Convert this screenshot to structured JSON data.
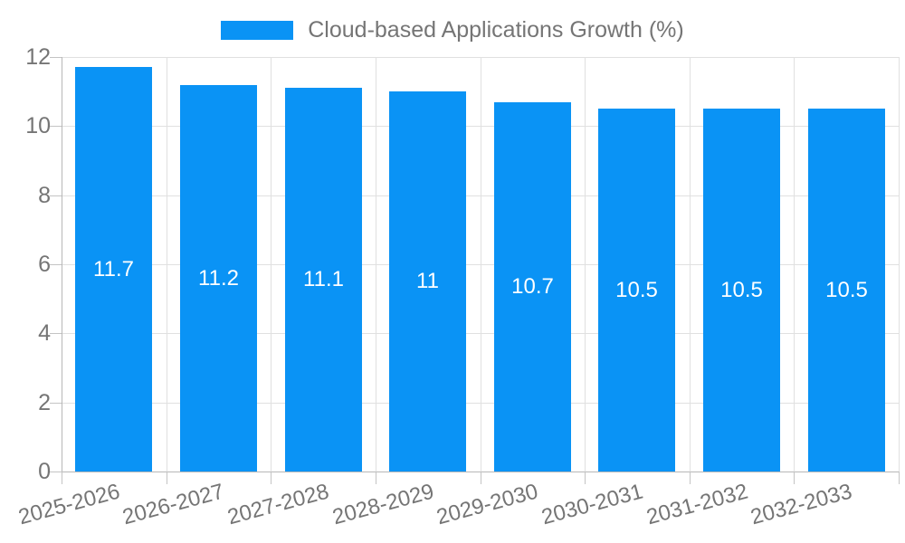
{
  "legend": {
    "label": "Cloud-based Applications Growth (%)"
  },
  "chart_data": {
    "type": "bar",
    "title": "",
    "categories": [
      "2025-2026",
      "2026-2027",
      "2027-2028",
      "2028-2029",
      "2029-2030",
      "2030-2031",
      "2031-2032",
      "2032-2033"
    ],
    "values": [
      11.7,
      11.2,
      11.1,
      11,
      10.7,
      10.5,
      10.5,
      10.5
    ],
    "bar_labels": [
      "11.7",
      "11.2",
      "11.1",
      "11",
      "10.7",
      "10.5",
      "10.5",
      "10.5"
    ],
    "series_name": "Cloud-based Applications Growth (%)",
    "xlabel": "",
    "ylabel": "",
    "ylim": [
      0,
      12
    ],
    "yticks": [
      0,
      2,
      4,
      6,
      8,
      10,
      12
    ],
    "grid": true,
    "x_label_rotation_deg": -15,
    "legend_position": "top-center"
  },
  "colors": {
    "bar": "#0a93f5",
    "grid": "#e0e0e0",
    "axis": "#b7b7b7",
    "tick": "#c4c4c4",
    "text": "#757575",
    "bar_label": "#ffffff",
    "background": "#ffffff"
  }
}
